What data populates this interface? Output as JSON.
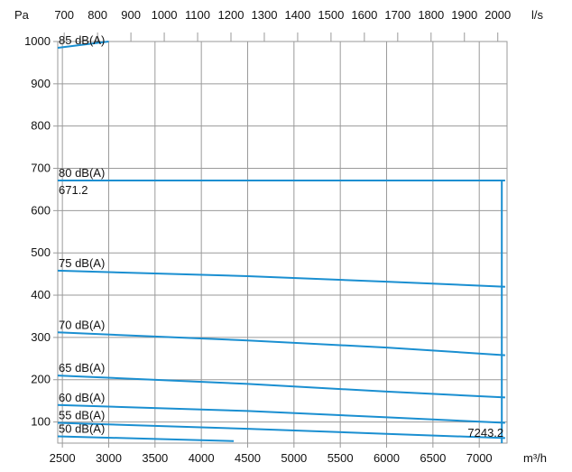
{
  "chart_data": {
    "type": "line",
    "title": "",
    "ylabel": "Pa",
    "xlabel": "m³/h",
    "x2label": "l/s",
    "ylim": [
      50,
      1000
    ],
    "xlim": [
      2450,
      7300
    ],
    "x2lim": [
      680.6,
      2027.8
    ],
    "yticks": [
      "100",
      "200",
      "300",
      "400",
      "500",
      "600",
      "700",
      "800",
      "900",
      "1000"
    ],
    "xticks": [
      "2500",
      "3000",
      "3500",
      "4000",
      "4500",
      "5000",
      "5500",
      "6000",
      "6500",
      "7000"
    ],
    "x2ticks": [
      "700",
      "800",
      "900",
      "1000",
      "1100",
      "1200",
      "1300",
      "1400",
      "1500",
      "1600",
      "1700",
      "1800",
      "1900",
      "2000"
    ],
    "grid": true,
    "series": [
      {
        "name": "85 dB(A)",
        "x": [
          2450,
          3000
        ],
        "y": [
          985,
          1000
        ]
      },
      {
        "name": "80 dB(A)",
        "x": [
          2450,
          3500,
          6500,
          7280
        ],
        "y": [
          671.2,
          671.2,
          671.2,
          671.2
        ]
      },
      {
        "name": "75 dB(A)",
        "x": [
          2450,
          4500,
          6000,
          7280
        ],
        "y": [
          458,
          445,
          432,
          420
        ]
      },
      {
        "name": "70 dB(A)",
        "x": [
          2450,
          4500,
          6000,
          7280
        ],
        "y": [
          312,
          293,
          276,
          258
        ]
      },
      {
        "name": "65 dB(A)",
        "x": [
          2450,
          4500,
          6000,
          7280
        ],
        "y": [
          210,
          190,
          172,
          158
        ]
      },
      {
        "name": "60 dB(A)",
        "x": [
          2450,
          4500,
          6000,
          7280
        ],
        "y": [
          140,
          126,
          111,
          98
        ]
      },
      {
        "name": "55 dB(A)",
        "x": [
          2450,
          4500,
          6000,
          7280
        ],
        "y": [
          98,
          84,
          72,
          62
        ]
      },
      {
        "name": "50 dB(A)",
        "x": [
          2450,
          4350
        ],
        "y": [
          66,
          55
        ]
      },
      {
        "name": "",
        "x": [
          7243.2,
          7243.2
        ],
        "y": [
          671.2,
          50
        ]
      }
    ],
    "annotations": [
      {
        "text": "671.2",
        "x": 2450,
        "y": 671.2
      },
      {
        "text": "7243.2",
        "x": 7243.2,
        "y": 50
      }
    ],
    "line_color": "#1a8fd1"
  }
}
